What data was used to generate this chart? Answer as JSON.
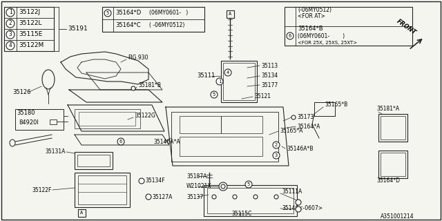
{
  "bg_color": "#f5f5f0",
  "border_color": "#000000",
  "diagram_id": "A351001214",
  "legend_items": [
    {
      "num": "1",
      "part": "35122J"
    },
    {
      "num": "2",
      "part": "35122L"
    },
    {
      "num": "3",
      "part": "35115E"
    },
    {
      "num": "4",
      "part": "35122M"
    }
  ],
  "legend_group_label": "35191"
}
